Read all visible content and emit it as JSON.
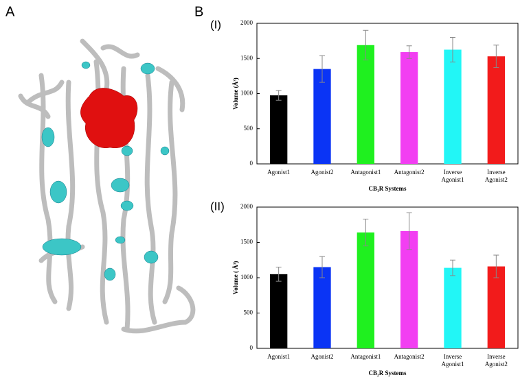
{
  "panels": {
    "a": "A",
    "b": "B"
  },
  "chart_data": [
    {
      "type": "bar",
      "title": "(I)",
      "x_label": "CB₁R  Systems",
      "y_label": "Volume (Å³)",
      "categories": [
        "Agonist1",
        "Agonist2",
        "Antagonist1",
        "Antagonist2",
        "Inverse Agonist1",
        "Inverse Agonist2"
      ],
      "values": [
        975,
        1350,
        1690,
        1590,
        1625,
        1530
      ],
      "errors": [
        70,
        190,
        210,
        90,
        175,
        160
      ],
      "colors": [
        "#000000",
        "#0a34f5",
        "#1ff01f",
        "#f23ef2",
        "#22f6f6",
        "#f21b1b"
      ],
      "ylim": [
        0,
        2000
      ],
      "yticks": [
        0,
        500,
        1000,
        1500,
        2000
      ]
    },
    {
      "type": "bar",
      "title": "(II)",
      "x_label": "CB₂R  Systems",
      "y_label": "Volume ( Å³)",
      "categories": [
        "Agonist1",
        "Agonist2",
        "Antagonist1",
        "Antagonist2",
        "Inverse Agonist1",
        "Inverse Agonist2"
      ],
      "values": [
        1050,
        1150,
        1640,
        1660,
        1140,
        1160
      ],
      "errors": [
        100,
        150,
        190,
        260,
        110,
        160
      ],
      "colors": [
        "#000000",
        "#0a34f5",
        "#1ff01f",
        "#f23ef2",
        "#22f6f6",
        "#f21b1b"
      ],
      "ylim": [
        0,
        2000
      ],
      "yticks": [
        0,
        500,
        1000,
        1500,
        2000
      ]
    }
  ]
}
